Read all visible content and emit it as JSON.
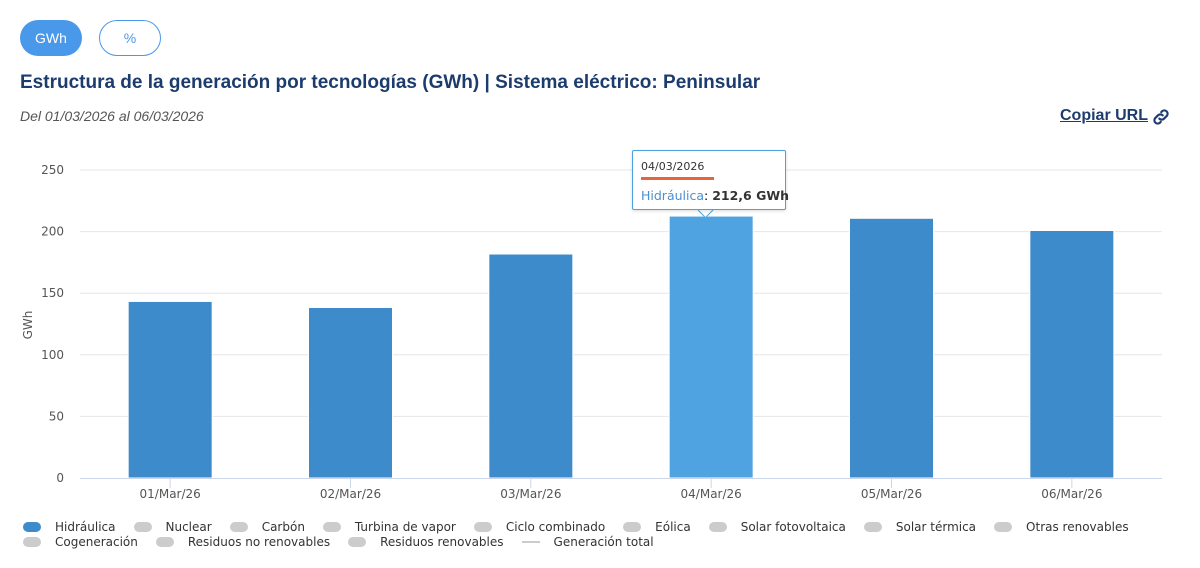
{
  "toggles": {
    "gwh": "GWh",
    "percent": "%"
  },
  "header": {
    "title": "Estructura de la generación por tecnologías (GWh) | Sistema eléctrico: Peninsular",
    "date_range": "Del 01/03/2026 al 06/03/2026",
    "copy_url": "Copiar URL"
  },
  "colors": {
    "bar": "#3d8bcb",
    "bar_highlight": "#4fa3e0",
    "inactive": "#cccccc",
    "tooltip_accent": "#e8643c"
  },
  "tooltip": {
    "date": "04/03/2026",
    "series": "Hidráulica",
    "separator": ": ",
    "value": "212,6 GWh"
  },
  "legend": {
    "rows": [
      [
        {
          "label": "Hidráulica",
          "active": true
        },
        {
          "label": "Nuclear",
          "active": false
        },
        {
          "label": "Carbón",
          "active": false
        },
        {
          "label": "Turbina de vapor",
          "active": false
        },
        {
          "label": "Ciclo combinado",
          "active": false
        },
        {
          "label": "Eólica",
          "active": false
        },
        {
          "label": "Solar fotovoltaica",
          "active": false
        },
        {
          "label": "Solar térmica",
          "active": false
        },
        {
          "label": "Otras renovables",
          "active": false
        }
      ],
      [
        {
          "label": "Cogeneración",
          "active": false
        },
        {
          "label": "Residuos no renovables",
          "active": false
        },
        {
          "label": "Residuos renovables",
          "active": false
        },
        {
          "label": "Generación total",
          "active": false,
          "line": true
        }
      ]
    ]
  },
  "chart_data": {
    "type": "bar",
    "title": "Estructura de la generación por tecnologías (GWh) | Sistema eléctrico: Peninsular",
    "xlabel": "",
    "ylabel": "GWh",
    "categories": [
      "01/Mar/26",
      "02/Mar/26",
      "03/Mar/26",
      "04/Mar/26",
      "05/Mar/26",
      "06/Mar/26"
    ],
    "series": [
      {
        "name": "Hidráulica",
        "values": [
          143.3,
          138.4,
          181.8,
          212.6,
          210.8,
          200.9
        ]
      }
    ],
    "highlighted_index": 3,
    "ylim": [
      0,
      250
    ],
    "yticks": [
      0,
      50,
      100,
      150,
      200,
      250
    ],
    "grid": true,
    "legend_position": "bottom"
  }
}
